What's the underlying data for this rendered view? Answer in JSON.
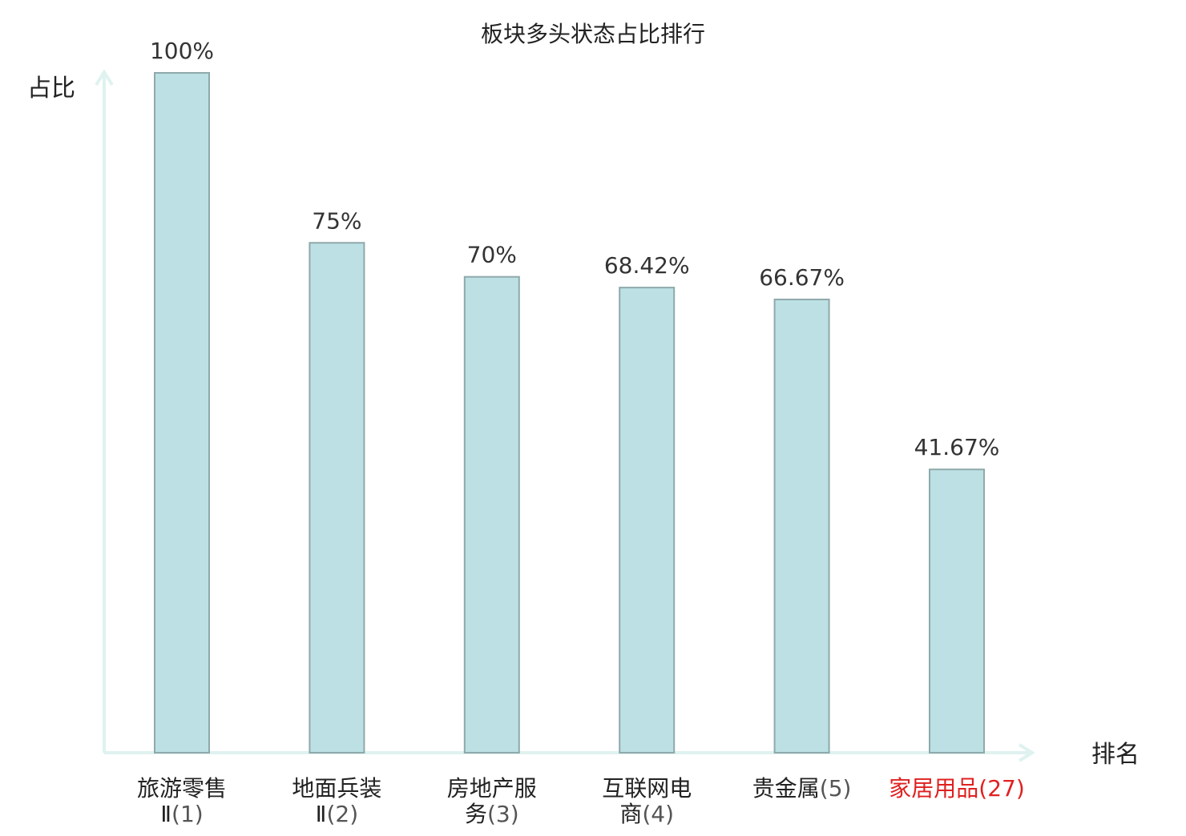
{
  "chart_data": {
    "type": "bar",
    "title": "板块多头状态占比排行",
    "ylabel": "占比",
    "xlabel": "排名",
    "ylim": [
      0,
      100
    ],
    "grid": false,
    "bar_color": "#bce0e3",
    "bar_edge_color": "#8fa9ab",
    "axis_color": "#dff2ef",
    "text_color": "#333333",
    "highlight_color": "#e02020",
    "categories": [
      {
        "name_lines": [
          "旅游零售",
          "Ⅱ"
        ],
        "rank": "(1)",
        "highlight": false
      },
      {
        "name_lines": [
          "地面兵装",
          "Ⅱ"
        ],
        "rank": "(2)",
        "highlight": false
      },
      {
        "name_lines": [
          "房地产服",
          "务"
        ],
        "rank": "(3)",
        "highlight": false
      },
      {
        "name_lines": [
          "互联网电",
          "商"
        ],
        "rank": "(4)",
        "highlight": false
      },
      {
        "name_lines": [
          "贵金属"
        ],
        "rank": "(5)",
        "highlight": false
      },
      {
        "name_lines": [
          "家居用品"
        ],
        "rank": "(27)",
        "highlight": true
      }
    ],
    "values": [
      100,
      75,
      70,
      68.42,
      66.67,
      41.67
    ],
    "value_labels": [
      "100%",
      "75%",
      "70%",
      "68.42%",
      "66.67%",
      "41.67%"
    ]
  }
}
